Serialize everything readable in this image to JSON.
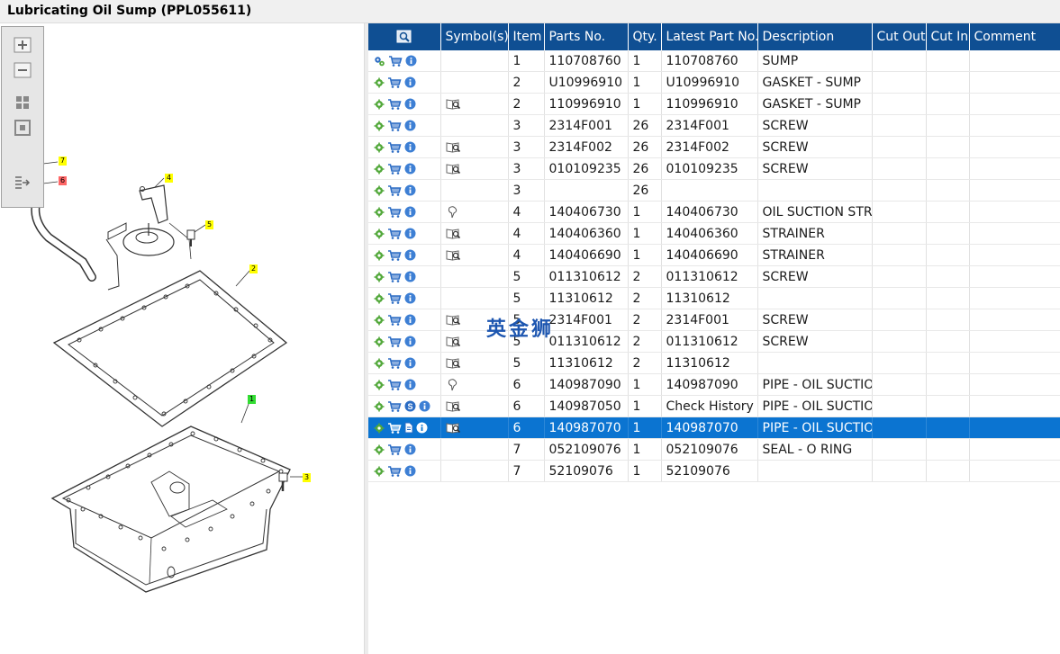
{
  "window": {
    "title": "Lubricating Oil Sump (PPL055611)"
  },
  "callouts": [
    {
      "label": "7",
      "color": "#ffff00"
    },
    {
      "label": "6",
      "color": "#ff6666"
    },
    {
      "label": "4",
      "color": "#ffff00"
    },
    {
      "label": "5",
      "color": "#ffff00"
    },
    {
      "label": "2",
      "color": "#ffff00"
    },
    {
      "label": "1",
      "color": "#33dd33"
    },
    {
      "label": "3",
      "color": "#ffff00"
    }
  ],
  "grid": {
    "columns": [
      "Symbol(s)",
      "Item",
      "Parts No.",
      "Qty.",
      "Latest Part No.",
      "Description",
      "Cut Out",
      "Cut In",
      "Comment"
    ],
    "rows": [
      {
        "lead": "gear-multi",
        "s": false,
        "sym": "",
        "item": "1",
        "part": "110708760",
        "qty": "1",
        "latest": "110708760",
        "desc": "SUMP",
        "sel": false
      },
      {
        "lead": "gear",
        "s": false,
        "sym": "",
        "item": "2",
        "part": "U10996910",
        "qty": "1",
        "latest": "U10996910",
        "desc": "GASKET - SUMP",
        "sel": false
      },
      {
        "lead": "gear",
        "s": false,
        "sym": "book",
        "item": "2",
        "part": "110996910",
        "qty": "1",
        "latest": "110996910",
        "desc": "GASKET - SUMP",
        "sel": false
      },
      {
        "lead": "gear",
        "s": false,
        "sym": "",
        "item": "3",
        "part": "2314F001",
        "qty": "26",
        "latest": "2314F001",
        "desc": "SCREW",
        "sel": false
      },
      {
        "lead": "gear",
        "s": false,
        "sym": "book",
        "item": "3",
        "part": "2314F002",
        "qty": "26",
        "latest": "2314F002",
        "desc": "SCREW",
        "sel": false
      },
      {
        "lead": "gear",
        "s": false,
        "sym": "book",
        "item": "3",
        "part": "010109235",
        "qty": "26",
        "latest": "010109235",
        "desc": "SCREW",
        "sel": false
      },
      {
        "lead": "gear",
        "s": false,
        "sym": "",
        "item": "3",
        "part": "",
        "qty": "26",
        "latest": "",
        "desc": "",
        "sel": false
      },
      {
        "lead": "gear",
        "s": false,
        "sym": "pin",
        "item": "4",
        "part": "140406730",
        "qty": "1",
        "latest": "140406730",
        "desc": "OIL SUCTION STRAINER",
        "sel": false
      },
      {
        "lead": "gear",
        "s": false,
        "sym": "book",
        "item": "4",
        "part": "140406360",
        "qty": "1",
        "latest": "140406360",
        "desc": "STRAINER",
        "sel": false
      },
      {
        "lead": "gear",
        "s": false,
        "sym": "book",
        "item": "4",
        "part": "140406690",
        "qty": "1",
        "latest": "140406690",
        "desc": "STRAINER",
        "sel": false
      },
      {
        "lead": "gear",
        "s": false,
        "sym": "",
        "item": "5",
        "part": "011310612",
        "qty": "2",
        "latest": "011310612",
        "desc": "SCREW",
        "sel": false
      },
      {
        "lead": "gear",
        "s": false,
        "sym": "",
        "item": "5",
        "part": "11310612",
        "qty": "2",
        "latest": "11310612",
        "desc": "",
        "sel": false
      },
      {
        "lead": "gear",
        "s": false,
        "sym": "book",
        "item": "5",
        "part": "2314F001",
        "qty": "2",
        "latest": "2314F001",
        "desc": "SCREW",
        "sel": false
      },
      {
        "lead": "gear",
        "s": false,
        "sym": "book",
        "item": "5",
        "part": "011310612",
        "qty": "2",
        "latest": "011310612",
        "desc": "SCREW",
        "sel": false
      },
      {
        "lead": "gear",
        "s": false,
        "sym": "book",
        "item": "5",
        "part": "11310612",
        "qty": "2",
        "latest": "11310612",
        "desc": "",
        "sel": false
      },
      {
        "lead": "gear",
        "s": false,
        "sym": "pin",
        "item": "6",
        "part": "140987090",
        "qty": "1",
        "latest": "140987090",
        "desc": "PIPE - OIL SUCTION",
        "sel": false
      },
      {
        "lead": "gear",
        "s": true,
        "sym": "book",
        "item": "6",
        "part": "140987050",
        "qty": "1",
        "latest": "Check History",
        "desc": "PIPE - OIL SUCTION",
        "sel": false
      },
      {
        "lead": "gear",
        "s": false,
        "sym": "book",
        "item": "6",
        "part": "140987070",
        "qty": "1",
        "latest": "140987070",
        "desc": "PIPE - OIL SUCTION",
        "sel": true
      },
      {
        "lead": "gear",
        "s": false,
        "sym": "",
        "item": "7",
        "part": "052109076",
        "qty": "1",
        "latest": "052109076",
        "desc": "SEAL - O RING",
        "sel": false
      },
      {
        "lead": "gear",
        "s": false,
        "sym": "",
        "item": "7",
        "part": "52109076",
        "qty": "1",
        "latest": "52109076",
        "desc": "",
        "sel": false
      }
    ]
  },
  "watermark": "英金狮"
}
